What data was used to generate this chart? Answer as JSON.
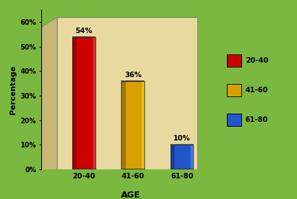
{
  "categories": [
    "20-40",
    "41-60",
    "61-80"
  ],
  "values": [
    54,
    36,
    10
  ],
  "labels": [
    "54%",
    "36%",
    "10%"
  ],
  "bar_colors": [
    "#cc0000",
    "#daa000",
    "#2255cc"
  ],
  "bar_colors_dark": [
    "#880000",
    "#8a6800",
    "#113388"
  ],
  "bar_colors_light": [
    "#ff5555",
    "#ffd040",
    "#5599ff"
  ],
  "bar_colors_top": [
    "#dd2222",
    "#e8b800",
    "#4477dd"
  ],
  "legend_labels": [
    "20-40",
    "41-60",
    "61-80"
  ],
  "legend_colors": [
    "#cc0000",
    "#daa000",
    "#2255cc"
  ],
  "xlabel": "AGE",
  "ylabel": "Percentage",
  "yticks": [
    0,
    10,
    20,
    30,
    40,
    50,
    60
  ],
  "ytick_labels": [
    "0%",
    "10%",
    "20%",
    "30%",
    "40%",
    "50%",
    "60%"
  ],
  "ylim": [
    0,
    65
  ],
  "figure_bg": "#7ab840",
  "wall_back_color": "#e8d9a0",
  "wall_left_color": "#c8b878",
  "floor_color": "#7ab840"
}
